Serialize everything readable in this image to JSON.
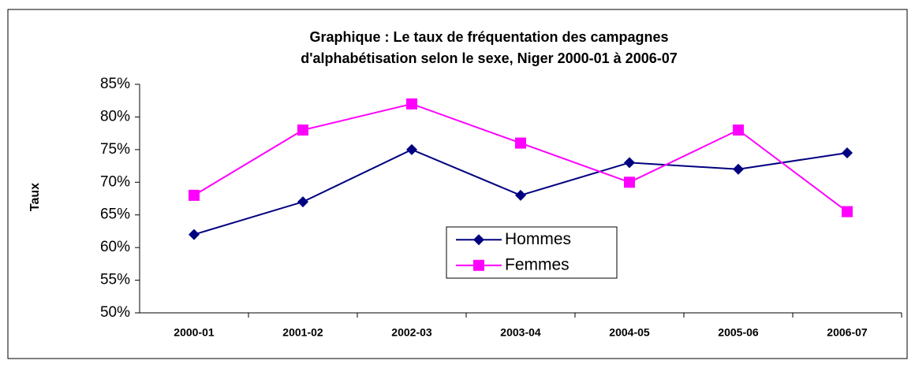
{
  "chart_data": {
    "type": "line",
    "title": [
      "Graphique : Le taux de fréquentation des campagnes",
      "d'alphabétisation selon le sexe, Niger 2000-01 à 2006-07"
    ],
    "y_label": "Taux",
    "categories": [
      "2000-01",
      "2001-02",
      "2002-03",
      "2003-04",
      "2004-05",
      "2005-06",
      "2006-07"
    ],
    "series": [
      {
        "name": "Hommes",
        "color": "#000080",
        "marker": "diamond",
        "values": [
          62,
          67,
          75,
          68,
          73,
          72,
          74.5
        ]
      },
      {
        "name": "Femmes",
        "color": "#ff00ff",
        "marker": "square",
        "values": [
          68,
          78,
          82,
          76,
          70,
          78,
          65.5
        ]
      }
    ],
    "ylim": [
      50,
      85
    ],
    "yticks": [
      {
        "value": 50,
        "label": "50%"
      },
      {
        "value": 55,
        "label": "55%"
      },
      {
        "value": 60,
        "label": "60%"
      },
      {
        "value": 65,
        "label": "65%"
      },
      {
        "value": 70,
        "label": "70%"
      },
      {
        "value": 75,
        "label": "75%"
      },
      {
        "value": 80,
        "label": "80%"
      },
      {
        "value": 85,
        "label": "85%"
      }
    ],
    "grid": false,
    "legend": "center"
  }
}
